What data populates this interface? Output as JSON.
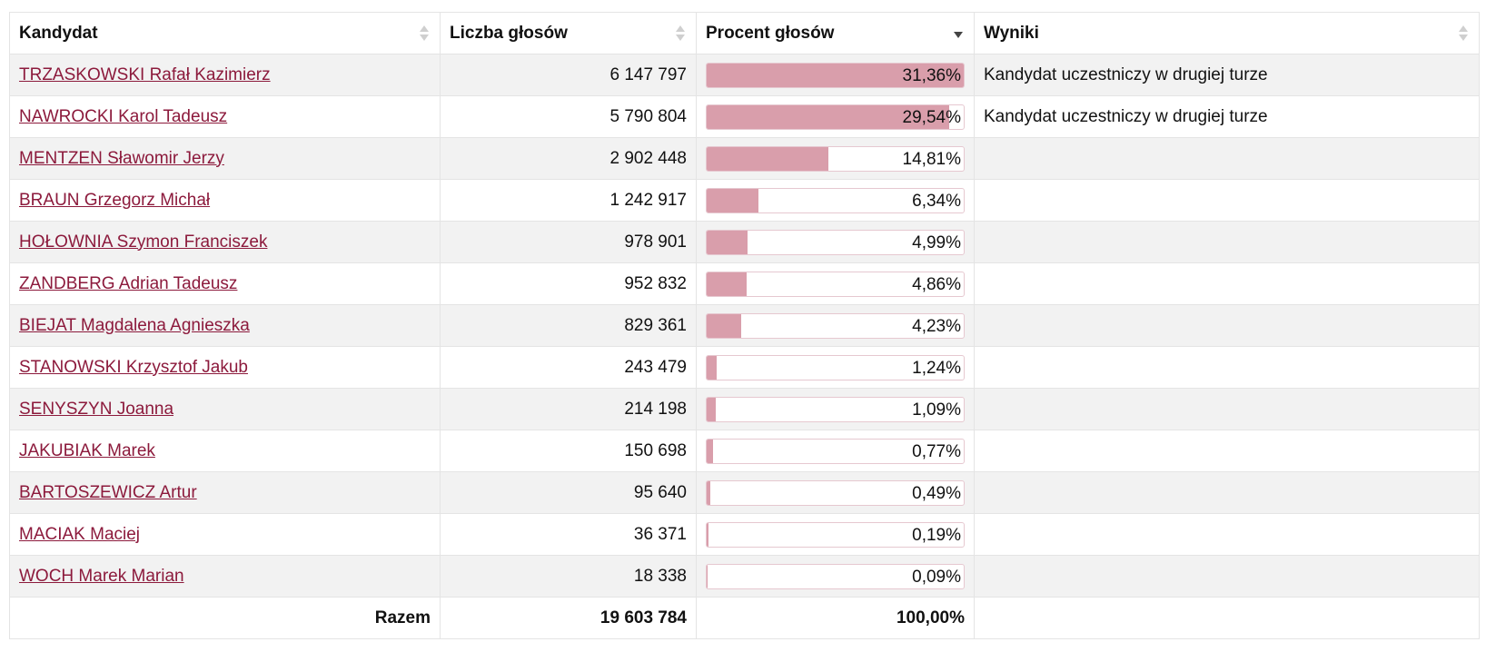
{
  "table": {
    "headers": {
      "candidate": "Kandydat",
      "votes": "Liczba głosów",
      "percent": "Procent głosów",
      "result": "Wyniki"
    },
    "rows": [
      {
        "name": "TRZASKOWSKI Rafał Kazimierz",
        "votes": "6 147 797",
        "percent_label": "31,36%",
        "percent": 31.36,
        "result": "Kandydat uczestniczy w drugiej turze"
      },
      {
        "name": "NAWROCKI Karol Tadeusz",
        "votes": "5 790 804",
        "percent_label": "29,54%",
        "percent": 29.54,
        "result": "Kandydat uczestniczy w drugiej turze"
      },
      {
        "name": "MENTZEN Sławomir Jerzy",
        "votes": "2 902 448",
        "percent_label": "14,81%",
        "percent": 14.81,
        "result": ""
      },
      {
        "name": "BRAUN Grzegorz Michał",
        "votes": "1 242 917",
        "percent_label": "6,34%",
        "percent": 6.34,
        "result": ""
      },
      {
        "name": "HOŁOWNIA Szymon Franciszek",
        "votes": "978 901",
        "percent_label": "4,99%",
        "percent": 4.99,
        "result": ""
      },
      {
        "name": "ZANDBERG Adrian Tadeusz",
        "votes": "952 832",
        "percent_label": "4,86%",
        "percent": 4.86,
        "result": ""
      },
      {
        "name": "BIEJAT Magdalena Agnieszka",
        "votes": "829 361",
        "percent_label": "4,23%",
        "percent": 4.23,
        "result": ""
      },
      {
        "name": "STANOWSKI Krzysztof Jakub",
        "votes": "243 479",
        "percent_label": "1,24%",
        "percent": 1.24,
        "result": ""
      },
      {
        "name": "SENYSZYN Joanna",
        "votes": "214 198",
        "percent_label": "1,09%",
        "percent": 1.09,
        "result": ""
      },
      {
        "name": "JAKUBIAK Marek",
        "votes": "150 698",
        "percent_label": "0,77%",
        "percent": 0.77,
        "result": ""
      },
      {
        "name": "BARTOSZEWICZ Artur",
        "votes": "95 640",
        "percent_label": "0,49%",
        "percent": 0.49,
        "result": ""
      },
      {
        "name": "MACIAK Maciej",
        "votes": "36 371",
        "percent_label": "0,19%",
        "percent": 0.19,
        "result": ""
      },
      {
        "name": "WOCH Marek Marian",
        "votes": "18 338",
        "percent_label": "0,09%",
        "percent": 0.09,
        "result": ""
      }
    ],
    "bar_scale_max": 31.36,
    "footer": {
      "label": "Razem",
      "votes": "19 603 784",
      "percent": "100,00%"
    },
    "sort": {
      "active_column": "percent",
      "direction": "descending"
    }
  },
  "colors": {
    "bar_fill": "#d99eab",
    "link": "#8c1a3c",
    "row_alt": "#f2f2f2"
  }
}
